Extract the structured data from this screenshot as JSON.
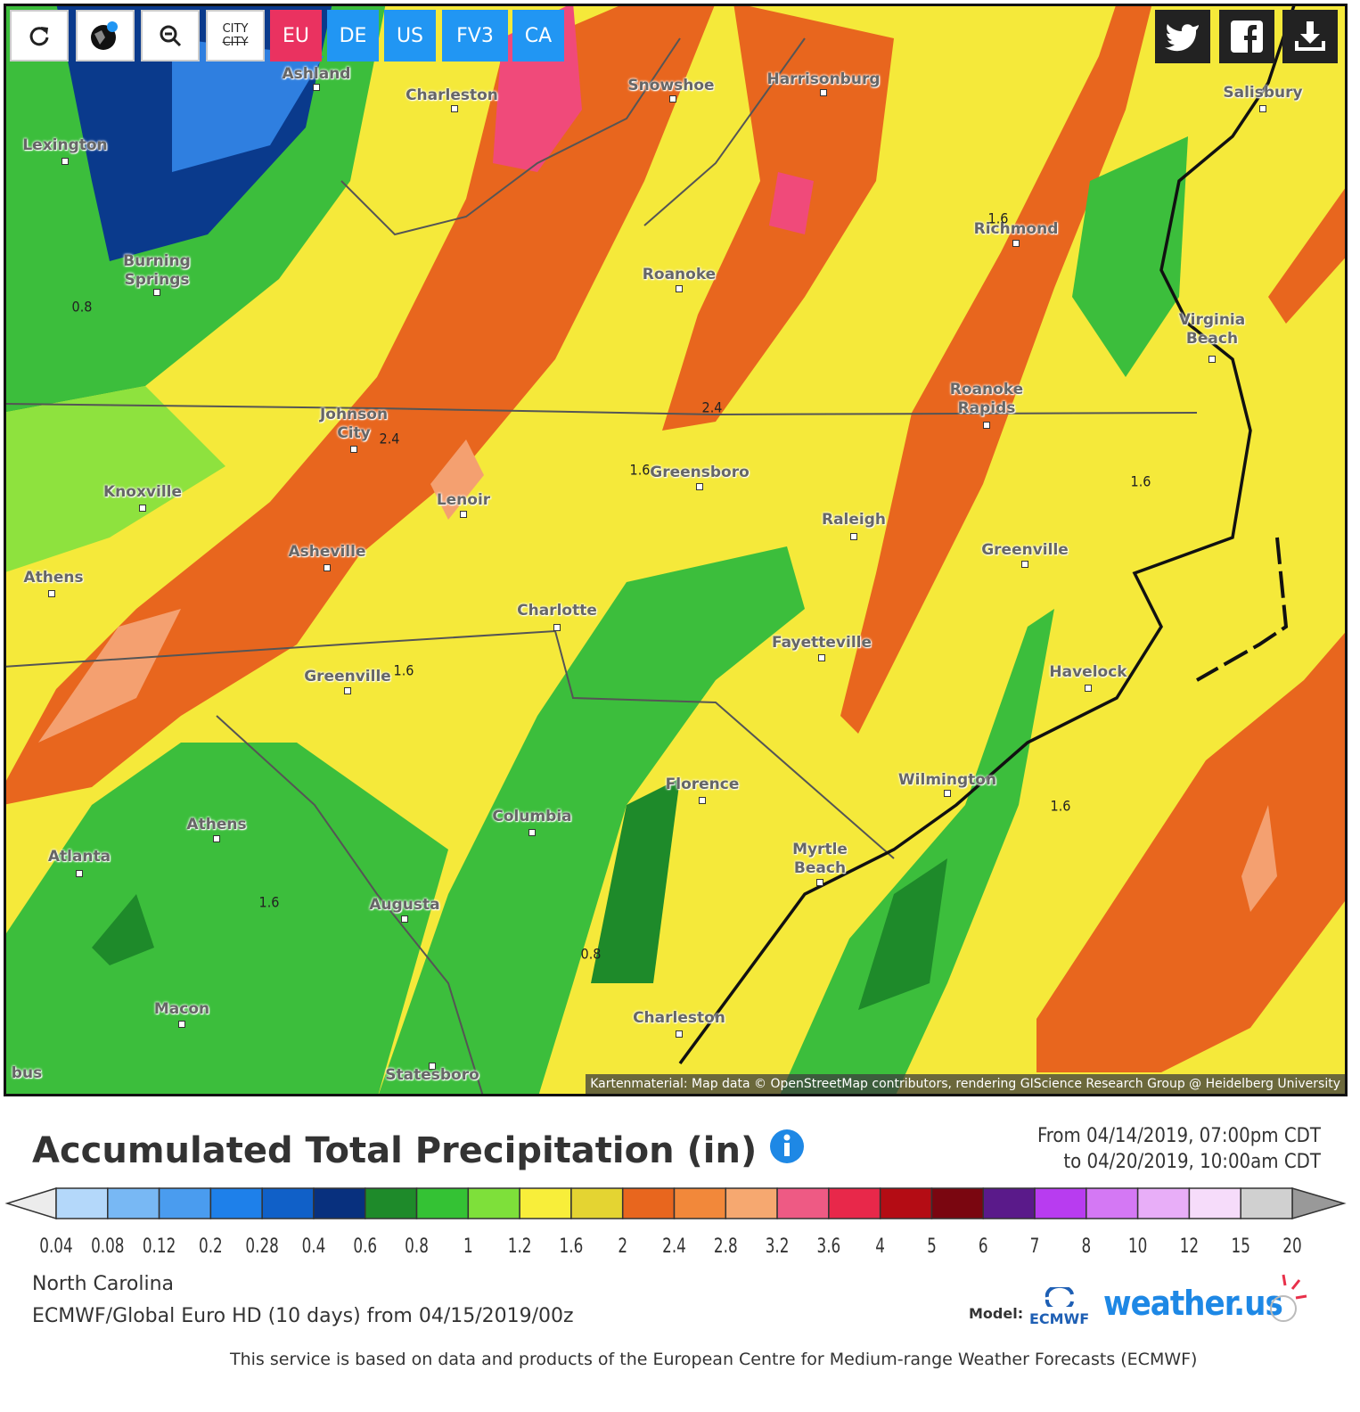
{
  "toolbar": {
    "city_toggle": "CITY",
    "buttons": [
      "EU",
      "DE",
      "US",
      "FV3",
      "CA"
    ]
  },
  "map": {
    "cities": [
      "Ashland",
      "Charleston",
      "Snowshoe",
      "Harrisonburg",
      "Salisbury",
      "Lexington",
      "Richmond",
      "Burning Springs",
      "Roanoke",
      "Virginia Beach",
      "Roanoke Rapids",
      "Johnson City",
      "Greensboro",
      "Knoxville",
      "Lenoir",
      "Raleigh",
      "Greenville",
      "Asheville",
      "Athens",
      "Charlotte",
      "Fayetteville",
      "Havelock",
      "Greenville",
      "Wilmington",
      "Florence",
      "Columbia",
      "Athens",
      "Myrtle Beach",
      "Atlanta",
      "Augusta",
      "Macon",
      "Charleston",
      "Statesboro",
      "bus"
    ],
    "contour_labels": [
      0.8,
      1.6,
      2.4,
      2.4,
      1.6,
      1.6,
      1.6,
      1.6,
      1.6,
      0.8
    ],
    "attribution": "Kartenmaterial: Map data © OpenStreetMap contributors, rendering GIScience Research Group @ Heidelberg University"
  },
  "header": {
    "title": "Accumulated Total Precipitation (in)",
    "from": "From 04/14/2019, 07:00pm CDT",
    "to": "to 04/20/2019, 10:00am CDT"
  },
  "legend": {
    "colors": [
      "#b4d8fa",
      "#78b8f4",
      "#4a9cef",
      "#1e80ea",
      "#1060c8",
      "#08307e",
      "#1e8a2a",
      "#34c234",
      "#7ee03a",
      "#f8ee3a",
      "#e4d432",
      "#e8661e",
      "#f2883a",
      "#f6a870",
      "#ee5a84",
      "#e8284a",
      "#b40c14",
      "#7a0610",
      "#5a1a8a",
      "#b83cf0",
      "#d478f4",
      "#e8aef8",
      "#f6dcfa",
      "#d0d0d0"
    ],
    "labels": [
      0.04,
      0.08,
      0.12,
      0.2,
      0.28,
      0.4,
      0.6,
      0.8,
      1,
      1.2,
      1.6,
      2,
      2.4,
      2.8,
      3.2,
      3.6,
      4,
      5,
      6,
      7,
      8,
      10,
      12,
      15,
      20
    ]
  },
  "footer": {
    "region": "North Carolina",
    "model_run": "ECMWF/Global Euro HD (10 days) from 04/15/2019/00z",
    "model_label": "Model:",
    "model_logo": "ECMWF",
    "brand": "weather.us",
    "disclaimer": "This service is based on data and products of the European Centre for Medium-range Weather Forecasts (ECMWF)"
  }
}
